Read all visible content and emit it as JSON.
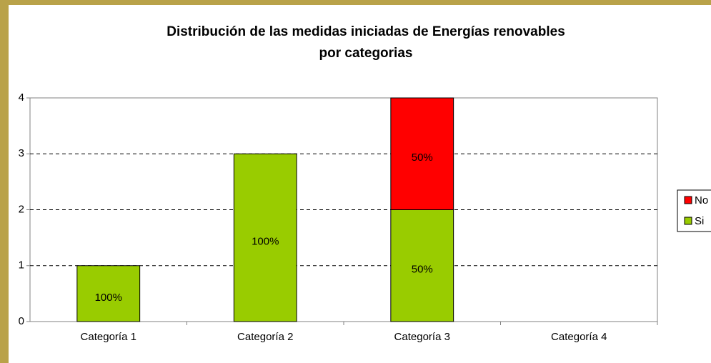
{
  "chart_data": {
    "type": "bar",
    "stacked": true,
    "title": [
      "Distribución de las medidas iniciadas de Energías renovables",
      "por categorias"
    ],
    "categories": [
      "Categoría 1",
      "Categoría 2",
      "Categoría 3",
      "Categoría 4"
    ],
    "series": [
      {
        "name": "Si",
        "color": "#99cc00",
        "values": [
          1,
          3,
          2,
          null
        ],
        "value_labels": [
          "100%",
          "100%",
          "50%",
          null
        ]
      },
      {
        "name": "No",
        "color": "#ff0000",
        "values": [
          null,
          null,
          2,
          null
        ],
        "value_labels": [
          null,
          null,
          "50%",
          null
        ]
      }
    ],
    "ylim": [
      0,
      4
    ],
    "yticks": [
      0,
      1,
      2,
      3,
      4
    ],
    "grid": true,
    "legend": "right"
  }
}
